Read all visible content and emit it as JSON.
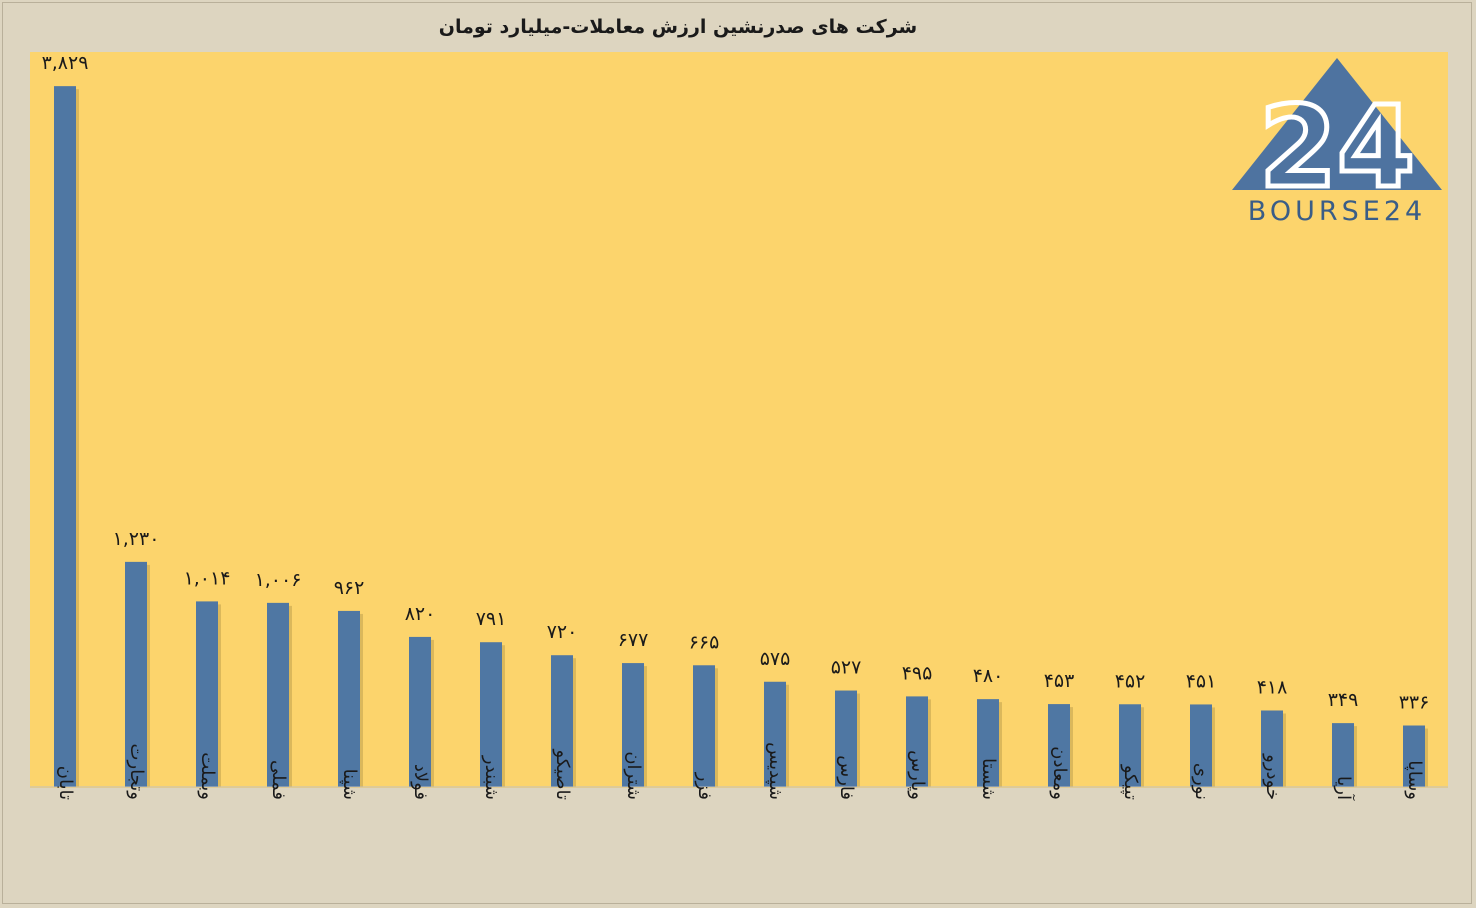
{
  "chart_data": {
    "type": "bar",
    "title": "شرکت های صدرنشین ارزش معاملات-میلیارد تومان",
    "categories": [
      "تابان",
      "وتجارت",
      "وبملت",
      "فملی",
      "شپنا",
      "فولاد",
      "شبندر",
      "تاصیکو",
      "شتران",
      "فزر",
      "شپدیس",
      "فارس",
      "وپارس",
      "شستا",
      "ومعادن",
      "تپیکو",
      "نوری",
      "خودرو",
      "آریا",
      "وساپا"
    ],
    "values": [
      3829,
      1230,
      1014,
      1006,
      962,
      820,
      791,
      720,
      677,
      665,
      575,
      527,
      495,
      480,
      453,
      452,
      451,
      418,
      349,
      336
    ],
    "value_labels": [
      "۳,۸۲۹",
      "۱,۲۳۰",
      "۱,۰۱۴",
      "۱,۰۰۶",
      "۹۶۲",
      "۸۲۰",
      "۷۹۱",
      "۷۲۰",
      "۶۷۷",
      "۶۶۵",
      "۵۷۵",
      "۵۲۷",
      "۴۹۵",
      "۴۸۰",
      "۴۵۳",
      "۴۵۲",
      "۴۵۱",
      "۴۱۸",
      "۳۴۹",
      "۳۳۶"
    ],
    "ylim": [
      0,
      3950
    ],
    "grid": false,
    "legend": "none",
    "colors": {
      "bar": "#4f77a3",
      "plot_bg": "#fcd46c",
      "page_bg": "#ddd5c0"
    }
  },
  "logo": {
    "text": "BOURSE24",
    "number": "24",
    "color": "#4e73a0"
  }
}
